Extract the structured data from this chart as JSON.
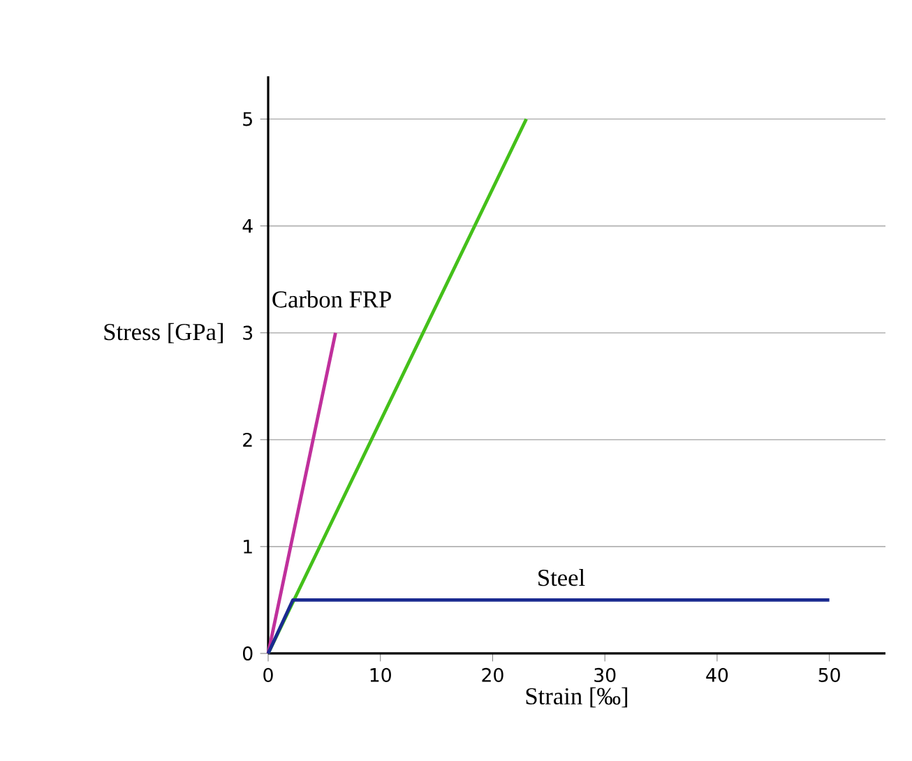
{
  "chart_data": {
    "type": "line",
    "xlabel": "Strain [‰]",
    "ylabel": "Stress [GPa]",
    "xlim": [
      0,
      55
    ],
    "ylim": [
      0,
      5.4
    ],
    "xticks": [
      0,
      10,
      20,
      30,
      40,
      50
    ],
    "yticks": [
      0,
      1,
      2,
      3,
      4,
      5
    ],
    "grid": "y",
    "line_style": "solid",
    "marker": "none",
    "series": [
      {
        "x": [
          0,
          23
        ],
        "values": [
          0,
          5
        ],
        "color": "#44c01a"
      },
      {
        "name": "Carbon FRP",
        "x": [
          0,
          6
        ],
        "values": [
          0,
          3
        ],
        "color": "#c0309c"
      },
      {
        "name": "Steel",
        "x": [
          0,
          2.2,
          50
        ],
        "values": [
          0,
          0.5,
          0.5
        ],
        "color": "#1a2a90"
      }
    ]
  }
}
